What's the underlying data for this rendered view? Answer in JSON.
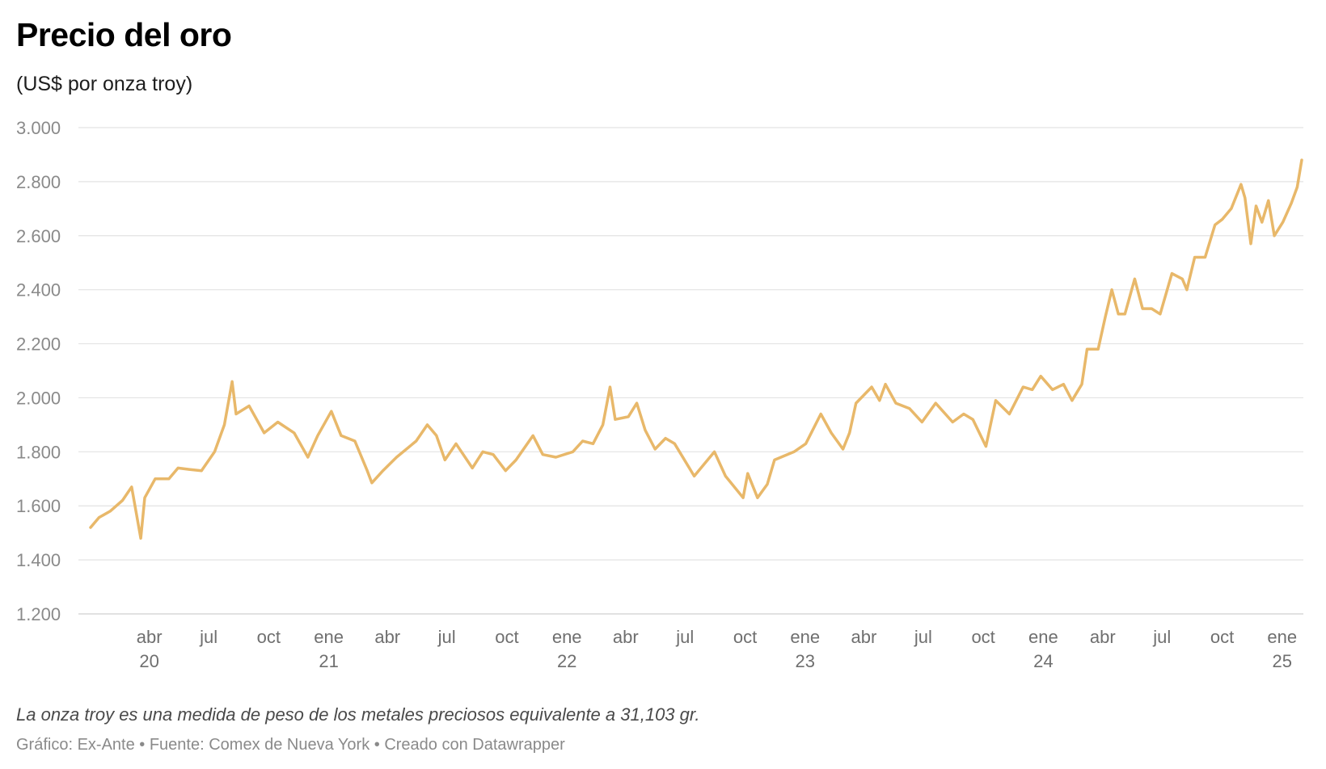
{
  "chart_data": {
    "type": "line",
    "title": "Precio del oro",
    "subtitle": "(US$ por onza troy)",
    "ylim": [
      1200,
      3000
    ],
    "y_ticks": [
      1200,
      1400,
      1600,
      1800,
      2000,
      2200,
      2400,
      2600,
      2800,
      3000
    ],
    "y_tick_labels": [
      "1.200",
      "1.400",
      "1.600",
      "1.800",
      "2.000",
      "2.200",
      "2.400",
      "2.600",
      "2.800",
      "3.000"
    ],
    "xlim": [
      "2020-01-02",
      "2025-01-31"
    ],
    "x_ticks": [
      {
        "date": "2020-04-01",
        "line1": "abr",
        "line2": "20"
      },
      {
        "date": "2020-07-01",
        "line1": "jul",
        "line2": ""
      },
      {
        "date": "2020-10-01",
        "line1": "oct",
        "line2": ""
      },
      {
        "date": "2021-01-01",
        "line1": "ene",
        "line2": "21"
      },
      {
        "date": "2021-04-01",
        "line1": "abr",
        "line2": ""
      },
      {
        "date": "2021-07-01",
        "line1": "jul",
        "line2": ""
      },
      {
        "date": "2021-10-01",
        "line1": "oct",
        "line2": ""
      },
      {
        "date": "2022-01-01",
        "line1": "ene",
        "line2": "22"
      },
      {
        "date": "2022-04-01",
        "line1": "abr",
        "line2": ""
      },
      {
        "date": "2022-07-01",
        "line1": "jul",
        "line2": ""
      },
      {
        "date": "2022-10-01",
        "line1": "oct",
        "line2": ""
      },
      {
        "date": "2023-01-01",
        "line1": "ene",
        "line2": "23"
      },
      {
        "date": "2023-04-01",
        "line1": "abr",
        "line2": ""
      },
      {
        "date": "2023-07-01",
        "line1": "jul",
        "line2": ""
      },
      {
        "date": "2023-10-01",
        "line1": "oct",
        "line2": ""
      },
      {
        "date": "2024-01-01",
        "line1": "ene",
        "line2": "24"
      },
      {
        "date": "2024-04-01",
        "line1": "abr",
        "line2": ""
      },
      {
        "date": "2024-07-01",
        "line1": "jul",
        "line2": ""
      },
      {
        "date": "2024-10-01",
        "line1": "oct",
        "line2": ""
      },
      {
        "date": "2025-01-01",
        "line1": "ene",
        "line2": "25"
      }
    ],
    "line_color": "#e8b86a",
    "grid": true,
    "series": [
      {
        "name": "",
        "points": [
          [
            "2020-01-02",
            1520
          ],
          [
            "2020-01-15",
            1557
          ],
          [
            "2020-02-01",
            1580
          ],
          [
            "2020-02-20",
            1620
          ],
          [
            "2020-03-05",
            1670
          ],
          [
            "2020-03-19",
            1480
          ],
          [
            "2020-03-25",
            1630
          ],
          [
            "2020-04-10",
            1700
          ],
          [
            "2020-05-01",
            1700
          ],
          [
            "2020-05-15",
            1740
          ],
          [
            "2020-06-01",
            1735
          ],
          [
            "2020-06-20",
            1730
          ],
          [
            "2020-07-10",
            1800
          ],
          [
            "2020-07-25",
            1900
          ],
          [
            "2020-08-06",
            2060
          ],
          [
            "2020-08-12",
            1940
          ],
          [
            "2020-09-01",
            1970
          ],
          [
            "2020-09-24",
            1870
          ],
          [
            "2020-10-15",
            1910
          ],
          [
            "2020-11-09",
            1870
          ],
          [
            "2020-11-30",
            1780
          ],
          [
            "2020-12-15",
            1860
          ],
          [
            "2021-01-05",
            1950
          ],
          [
            "2021-01-20",
            1860
          ],
          [
            "2021-02-10",
            1840
          ],
          [
            "2021-03-01",
            1730
          ],
          [
            "2021-03-08",
            1685
          ],
          [
            "2021-03-25",
            1730
          ],
          [
            "2021-04-15",
            1780
          ],
          [
            "2021-05-15",
            1840
          ],
          [
            "2021-06-01",
            1900
          ],
          [
            "2021-06-15",
            1860
          ],
          [
            "2021-06-28",
            1770
          ],
          [
            "2021-07-15",
            1830
          ],
          [
            "2021-08-09",
            1740
          ],
          [
            "2021-08-25",
            1800
          ],
          [
            "2021-09-10",
            1790
          ],
          [
            "2021-09-29",
            1730
          ],
          [
            "2021-10-15",
            1770
          ],
          [
            "2021-11-10",
            1860
          ],
          [
            "2021-11-25",
            1790
          ],
          [
            "2021-12-15",
            1780
          ],
          [
            "2022-01-10",
            1800
          ],
          [
            "2022-01-25",
            1840
          ],
          [
            "2022-02-10",
            1830
          ],
          [
            "2022-02-25",
            1900
          ],
          [
            "2022-03-08",
            2040
          ],
          [
            "2022-03-16",
            1920
          ],
          [
            "2022-04-05",
            1930
          ],
          [
            "2022-04-18",
            1980
          ],
          [
            "2022-05-01",
            1880
          ],
          [
            "2022-05-16",
            1810
          ],
          [
            "2022-06-01",
            1850
          ],
          [
            "2022-06-15",
            1830
          ],
          [
            "2022-07-15",
            1710
          ],
          [
            "2022-08-15",
            1800
          ],
          [
            "2022-09-01",
            1710
          ],
          [
            "2022-09-28",
            1630
          ],
          [
            "2022-10-05",
            1720
          ],
          [
            "2022-10-20",
            1630
          ],
          [
            "2022-11-04",
            1680
          ],
          [
            "2022-11-15",
            1770
          ],
          [
            "2022-12-15",
            1800
          ],
          [
            "2023-01-02",
            1830
          ],
          [
            "2023-01-25",
            1940
          ],
          [
            "2023-02-10",
            1870
          ],
          [
            "2023-02-28",
            1810
          ],
          [
            "2023-03-10",
            1870
          ],
          [
            "2023-03-20",
            1980
          ],
          [
            "2023-04-13",
            2040
          ],
          [
            "2023-04-25",
            1990
          ],
          [
            "2023-05-04",
            2050
          ],
          [
            "2023-05-20",
            1980
          ],
          [
            "2023-06-10",
            1960
          ],
          [
            "2023-06-29",
            1910
          ],
          [
            "2023-07-20",
            1980
          ],
          [
            "2023-08-15",
            1910
          ],
          [
            "2023-09-01",
            1940
          ],
          [
            "2023-09-15",
            1920
          ],
          [
            "2023-10-05",
            1820
          ],
          [
            "2023-10-20",
            1990
          ],
          [
            "2023-11-10",
            1940
          ],
          [
            "2023-12-01",
            2040
          ],
          [
            "2023-12-15",
            2030
          ],
          [
            "2023-12-28",
            2080
          ],
          [
            "2024-01-15",
            2030
          ],
          [
            "2024-02-01",
            2050
          ],
          [
            "2024-02-14",
            1990
          ],
          [
            "2024-02-29",
            2050
          ],
          [
            "2024-03-08",
            2180
          ],
          [
            "2024-03-25",
            2180
          ],
          [
            "2024-04-05",
            2300
          ],
          [
            "2024-04-15",
            2400
          ],
          [
            "2024-04-25",
            2310
          ],
          [
            "2024-05-05",
            2310
          ],
          [
            "2024-05-20",
            2440
          ],
          [
            "2024-06-01",
            2330
          ],
          [
            "2024-06-15",
            2330
          ],
          [
            "2024-06-28",
            2310
          ],
          [
            "2024-07-16",
            2460
          ],
          [
            "2024-08-01",
            2440
          ],
          [
            "2024-08-08",
            2400
          ],
          [
            "2024-08-20",
            2520
          ],
          [
            "2024-09-05",
            2520
          ],
          [
            "2024-09-20",
            2640
          ],
          [
            "2024-10-01",
            2660
          ],
          [
            "2024-10-15",
            2700
          ],
          [
            "2024-10-30",
            2790
          ],
          [
            "2024-11-05",
            2740
          ],
          [
            "2024-11-14",
            2570
          ],
          [
            "2024-11-22",
            2710
          ],
          [
            "2024-12-01",
            2650
          ],
          [
            "2024-12-11",
            2730
          ],
          [
            "2024-12-20",
            2600
          ],
          [
            "2025-01-02",
            2650
          ],
          [
            "2025-01-15",
            2720
          ],
          [
            "2025-01-24",
            2780
          ],
          [
            "2025-01-31",
            2880
          ]
        ]
      }
    ]
  },
  "footer": {
    "note": "La onza troy es una medida de peso de los metales preciosos equivalente a 31,103 gr.",
    "credit": "Gráfico: Ex-Ante • Fuente: Comex de Nueva York • Creado con Datawrapper"
  }
}
